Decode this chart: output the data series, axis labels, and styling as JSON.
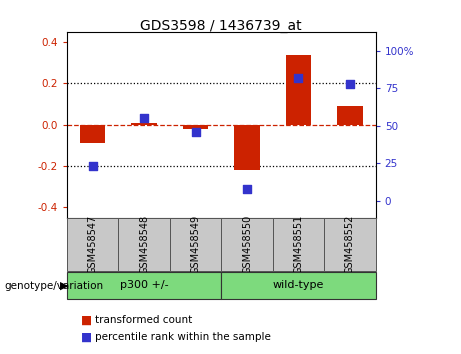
{
  "title": "GDS3598 / 1436739_at",
  "samples": [
    "GSM458547",
    "GSM458548",
    "GSM458549",
    "GSM458550",
    "GSM458551",
    "GSM458552"
  ],
  "transformed_count": [
    -0.09,
    0.01,
    -0.02,
    -0.22,
    0.34,
    0.09
  ],
  "percentile_rank": [
    23,
    55,
    46,
    8,
    82,
    78
  ],
  "group_bg_color": "#7dda7d",
  "sample_bg_color": "#c8c8c8",
  "ylim_left": [
    -0.45,
    0.45
  ],
  "ylim_right": [
    -11.25,
    112.5
  ],
  "yticks_left": [
    -0.4,
    -0.2,
    0.0,
    0.2,
    0.4
  ],
  "yticks_right": [
    0,
    25,
    50,
    75,
    100
  ],
  "ytick_labels_right": [
    "0",
    "25",
    "50",
    "75",
    "100%"
  ],
  "bar_color": "#cc2200",
  "dot_color": "#3333cc",
  "hline_color": "#cc2200",
  "dotted_line_color": "#000000",
  "bar_width": 0.5,
  "dot_size": 40,
  "legend_items": [
    "transformed count",
    "percentile rank within the sample"
  ],
  "genotype_label": "genotype/variation",
  "arrow_char": "▶",
  "group_boundaries": [
    {
      "start": 0,
      "end": 3,
      "label": "p300 +/-"
    },
    {
      "start": 3,
      "end": 6,
      "label": "wild-type"
    }
  ]
}
